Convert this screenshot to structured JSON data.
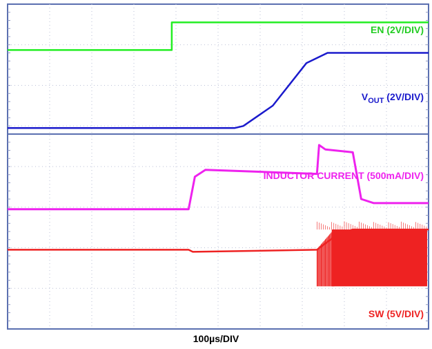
{
  "chart_data": {
    "type": "line",
    "title": "",
    "xlabel": "100µs/DIV",
    "ylabel": "",
    "grid": true,
    "divisions": {
      "x": 10,
      "y": 8
    },
    "xlim": [
      0,
      10
    ],
    "ylim": [
      0,
      8
    ],
    "x_unit": "div",
    "y_unit": "div",
    "series": [
      {
        "name": "EN (2V/DIV)",
        "label_main": "EN (2V/DIV)",
        "color": "#22ee22",
        "x": [
          0,
          3.9,
          3.9,
          10
        ],
        "y": [
          6.87,
          6.87,
          7.55,
          7.55
        ]
      },
      {
        "name": "VOUT (2V/DIV)",
        "label_main": "V",
        "label_sub": "OUT",
        "label_rest": " (2V/DIV)",
        "color": "#1a1acc",
        "x": [
          0,
          5.4,
          5.6,
          6.3,
          7.1,
          7.6,
          10
        ],
        "y": [
          4.95,
          4.95,
          5.0,
          5.5,
          6.55,
          6.8,
          6.8
        ]
      },
      {
        "name": "INDUCTOR CURRENT (500mA/DIV)",
        "label_main": "INDUCTOR CURRENT (500mA/DIV)",
        "color": "#ee22ee",
        "x": [
          0,
          4.3,
          4.45,
          4.7,
          7.35,
          7.4,
          7.55,
          8.2,
          8.4,
          8.7,
          10
        ],
        "y": [
          2.95,
          2.95,
          3.75,
          3.92,
          3.82,
          4.53,
          4.42,
          4.35,
          3.2,
          3.1,
          3.1
        ]
      },
      {
        "name": "SW (5V/DIV)",
        "label_main": "SW (5V/DIV)",
        "color": "#ee2222",
        "x": [
          0,
          4.3,
          4.4,
          7.35,
          7.8,
          8.2,
          10
        ],
        "y": [
          1.95,
          1.95,
          1.9,
          1.95,
          2.3,
          2.45,
          2.45
        ],
        "switching_region": {
          "x_start": 7.35,
          "x_end": 10,
          "y_low": 1.05,
          "y_high": 2.45
        }
      }
    ],
    "divider_y": 4.8
  }
}
